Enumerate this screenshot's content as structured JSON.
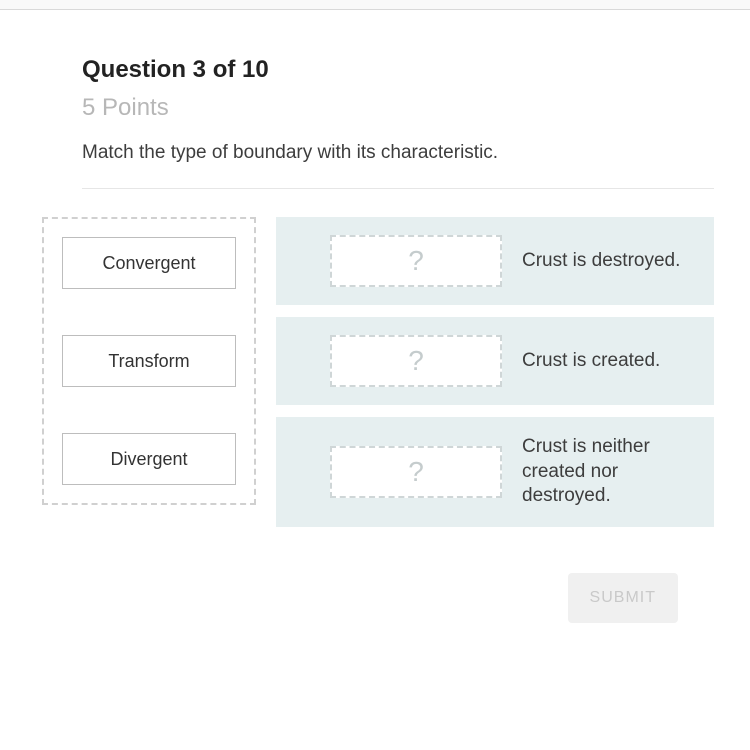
{
  "header": {
    "title": "Question 3 of 10",
    "points": "5 Points",
    "prompt": "Match the type of boundary with its characteristic."
  },
  "terms": [
    {
      "label": "Convergent"
    },
    {
      "label": "Transform"
    },
    {
      "label": "Divergent"
    }
  ],
  "targets": [
    {
      "placeholder": "?",
      "text": "Crust is destroyed."
    },
    {
      "placeholder": "?",
      "text": "Crust is created."
    },
    {
      "placeholder": "?",
      "text": "Crust is neither created nor destroyed."
    }
  ],
  "submit": {
    "label": "SUBMIT"
  },
  "colors": {
    "points_text": "#b7b7b7",
    "target_bg": "#e6eff0",
    "drop_border": "#cfd6d7",
    "drop_placeholder": "#c5cccd",
    "term_border": "#bdbdbd",
    "divider": "#e6e6e6",
    "submit_bg": "#f0f0f0",
    "submit_text": "#c9c9c9"
  }
}
